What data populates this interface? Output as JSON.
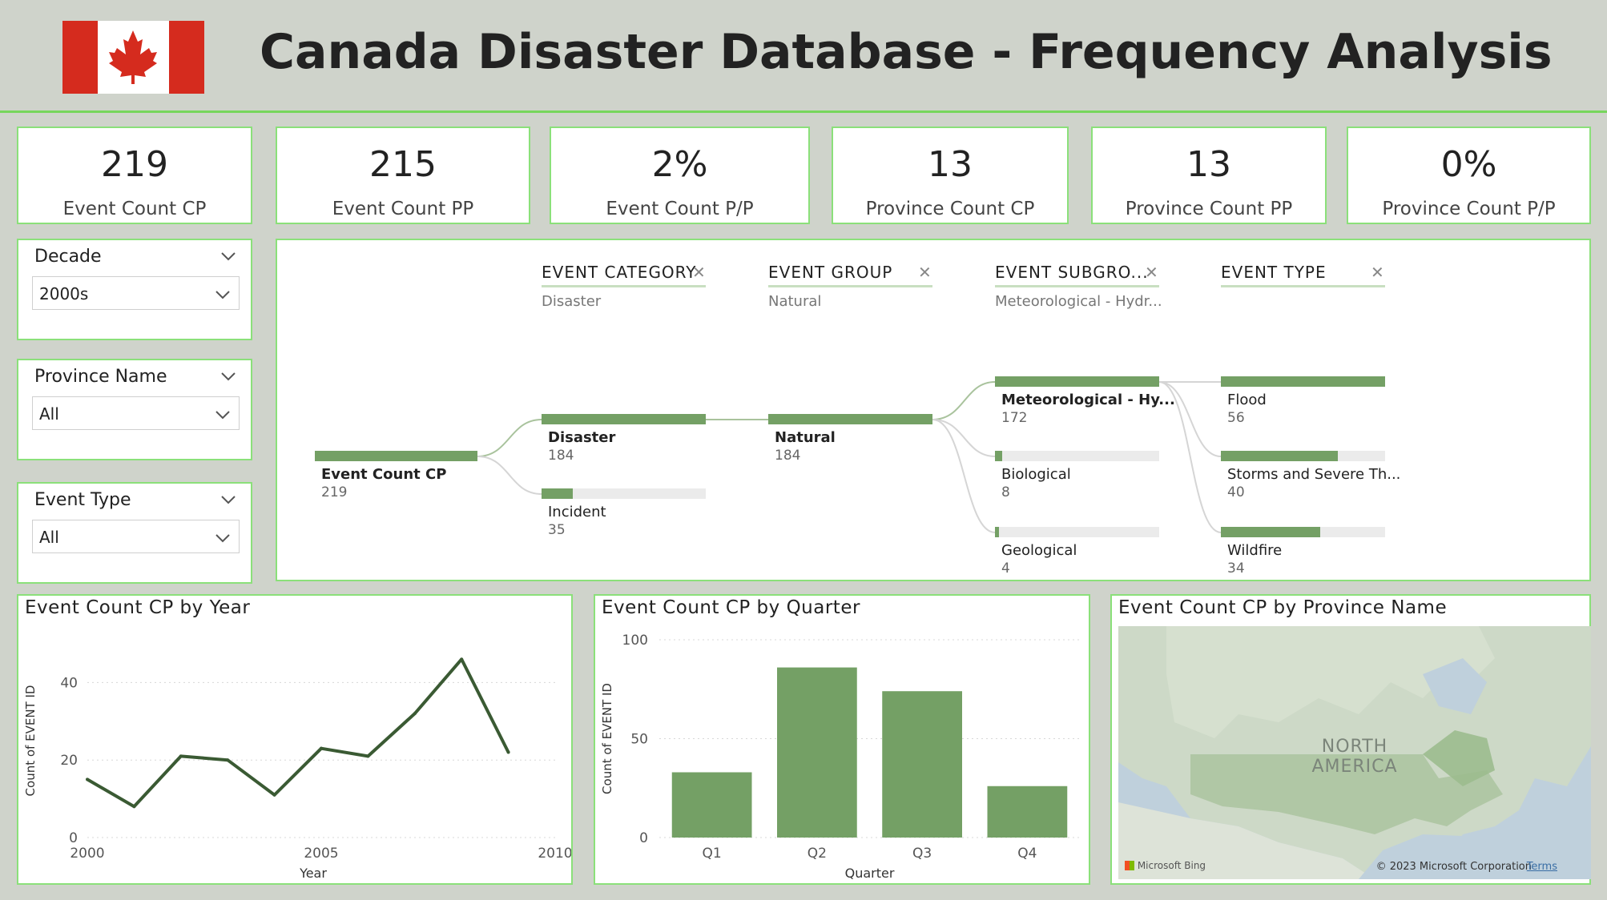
{
  "header": {
    "title": "Canada Disaster Database - Frequency Analysis"
  },
  "kpis": [
    {
      "value": "219",
      "label": "Event Count CP"
    },
    {
      "value": "215",
      "label": "Event Count PP"
    },
    {
      "value": "2%",
      "label": "Event Count P/P"
    },
    {
      "value": "13",
      "label": "Province Count CP"
    },
    {
      "value": "13",
      "label": "Province Count PP"
    },
    {
      "value": "0%",
      "label": "Province Count P/P"
    }
  ],
  "slicers": [
    {
      "title": "Decade",
      "value": "2000s"
    },
    {
      "title": "Province Name",
      "value": "All"
    },
    {
      "title": "Event Type",
      "value": "All"
    }
  ],
  "decomp_tree": {
    "levels": [
      {
        "header": "EVENT CATEGORY",
        "selected": "Disaster"
      },
      {
        "header": "EVENT GROUP",
        "selected": "Natural"
      },
      {
        "header": "EVENT SUBGRO...",
        "selected": "Meteorological - Hydr..."
      },
      {
        "header": "EVENT TYPE",
        "selected": ""
      }
    ],
    "root": {
      "label": "Event Count CP",
      "value": "219"
    },
    "category": [
      {
        "label": "Disaster",
        "value": "184"
      },
      {
        "label": "Incident",
        "value": "35"
      }
    ],
    "group": [
      {
        "label": "Natural",
        "value": "184"
      }
    ],
    "subgroup": [
      {
        "label": "Meteorological - Hy...",
        "value": "172"
      },
      {
        "label": "Biological",
        "value": "8"
      },
      {
        "label": "Geological",
        "value": "4"
      }
    ],
    "type": [
      {
        "label": "Flood",
        "value": "56"
      },
      {
        "label": "Storms and Severe Th...",
        "value": "40"
      },
      {
        "label": "Wildfire",
        "value": "34"
      }
    ]
  },
  "line_visual": {
    "title": "Event Count CP by Year"
  },
  "bar_visual": {
    "title": "Event Count CP by Quarter"
  },
  "map_visual": {
    "title": "Event Count CP by Province Name",
    "label_line1": "NORTH",
    "label_line2": "AMERICA",
    "bing": "Microsoft Bing",
    "copyright": "© 2023 Microsoft Corporation",
    "terms": "Terms"
  },
  "chart_data": [
    {
      "type": "line",
      "title": "Event Count CP by Year",
      "xlabel": "Year",
      "ylabel": "Count of EVENT ID",
      "x": [
        2000,
        2001,
        2002,
        2003,
        2004,
        2005,
        2006,
        2007,
        2008,
        2009
      ],
      "values": [
        15,
        8,
        21,
        20,
        11,
        23,
        21,
        32,
        46,
        22
      ],
      "xticks": [
        "2000",
        "2005",
        "2010"
      ],
      "yticks": [
        "0",
        "20",
        "40"
      ],
      "xlim": [
        2000,
        2010
      ],
      "ylim": [
        0,
        50
      ],
      "color": "#3a5a33",
      "grid": true
    },
    {
      "type": "bar",
      "title": "Event Count CP by Quarter",
      "xlabel": "Quarter",
      "ylabel": "Count of EVENT ID",
      "categories": [
        "Q1",
        "Q2",
        "Q3",
        "Q4"
      ],
      "values": [
        33,
        86,
        74,
        26
      ],
      "yticks": [
        "0",
        "50",
        "100"
      ],
      "ylim": [
        0,
        100
      ],
      "color": "#74a065",
      "grid": true
    }
  ]
}
